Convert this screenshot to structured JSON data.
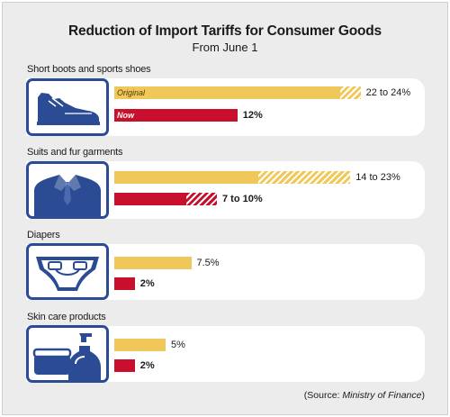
{
  "title": "Reduction of Import Tariffs for Consumer Goods",
  "subtitle": "From June 1",
  "series_labels": {
    "original": "Original",
    "now": "Now"
  },
  "chart_data": {
    "type": "bar",
    "title": "Reduction of Import Tariffs for Consumer Goods",
    "subtitle": "From June 1",
    "unit": "%",
    "categories": [
      "Short boots and sports shoes",
      "Suits and fur garments",
      "Diapers",
      "Skin care products"
    ],
    "series": [
      {
        "name": "Original",
        "color": "#f0c85a",
        "values": [
          [
            22,
            24
          ],
          [
            14,
            23
          ],
          7.5,
          5
        ],
        "labels": [
          "22 to 24%",
          "14 to 23%",
          "7.5%",
          "5%"
        ]
      },
      {
        "name": "Now",
        "color": "#c8102e",
        "values": [
          12,
          [
            7,
            10
          ],
          2,
          2
        ],
        "labels": [
          "12%",
          "7 to 10%",
          "2%",
          "2%"
        ]
      }
    ],
    "icons": [
      "shoe-icon",
      "suit-icon",
      "diaper-icon",
      "skin-care-icon"
    ]
  },
  "source_prefix": "(Source: ",
  "source_name": "Ministry of Finance",
  "source_suffix": ")"
}
